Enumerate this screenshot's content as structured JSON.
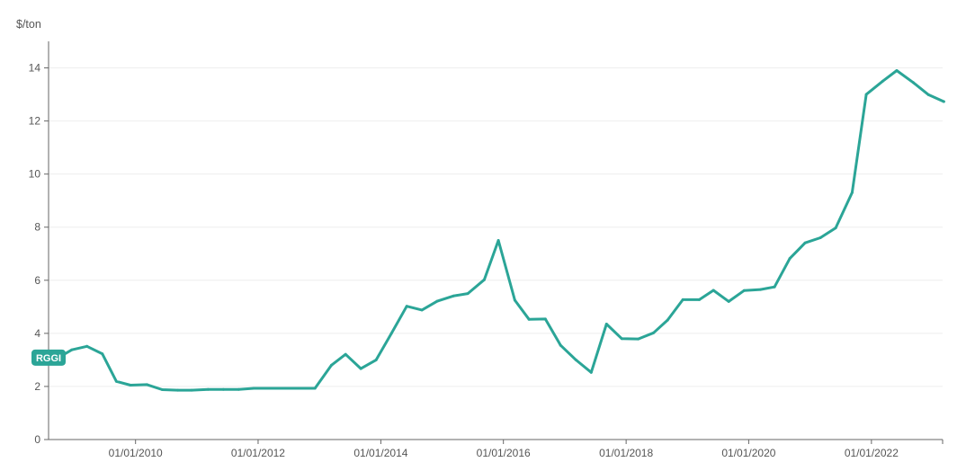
{
  "chart_data": {
    "type": "line",
    "y_unit": "$/ton",
    "ylim": [
      0,
      15
    ],
    "yticks": [
      0,
      2,
      4,
      6,
      8,
      10,
      12,
      14
    ],
    "xlim": [
      "2008-08-01",
      "2023-03-01"
    ],
    "xticks": [
      "2010-01-01",
      "2012-01-01",
      "2014-01-01",
      "2016-01-01",
      "2018-01-01",
      "2020-01-01",
      "2022-01-01"
    ],
    "xtick_labels": [
      "01/01/2010",
      "01/01/2012",
      "01/01/2014",
      "01/01/2016",
      "01/01/2018",
      "01/01/2020",
      "01/01/2022"
    ],
    "grid": true,
    "series": [
      {
        "name": "RGGI",
        "color": "#2ba597",
        "x": [
          "2008-09-25",
          "2008-12-17",
          "2009-03-18",
          "2009-06-17",
          "2009-09-09",
          "2009-12-02",
          "2010-03-10",
          "2010-06-09",
          "2010-09-10",
          "2010-12-01",
          "2011-03-09",
          "2011-06-08",
          "2011-09-07",
          "2011-12-07",
          "2012-03-14",
          "2012-06-06",
          "2012-09-05",
          "2012-12-05",
          "2013-03-13",
          "2013-06-05",
          "2013-09-04",
          "2013-12-04",
          "2014-03-05",
          "2014-06-04",
          "2014-09-03",
          "2014-12-03",
          "2015-03-11",
          "2015-06-03",
          "2015-09-09",
          "2015-12-02",
          "2016-03-09",
          "2016-06-01",
          "2016-09-07",
          "2016-12-07",
          "2017-03-08",
          "2017-06-07",
          "2017-09-06",
          "2017-12-06",
          "2018-03-14",
          "2018-06-13",
          "2018-09-05",
          "2018-12-05",
          "2019-03-13",
          "2019-06-05",
          "2019-09-04",
          "2019-12-04",
          "2020-03-11",
          "2020-06-03",
          "2020-09-02",
          "2020-12-02",
          "2021-03-03",
          "2021-06-02",
          "2021-09-08",
          "2021-12-01",
          "2022-03-09",
          "2022-06-01",
          "2022-09-07",
          "2022-12-07",
          "2023-03-08"
        ],
        "values": [
          3.07,
          3.38,
          3.51,
          3.23,
          2.19,
          2.05,
          2.07,
          1.88,
          1.86,
          1.86,
          1.89,
          1.89,
          1.89,
          1.93,
          1.93,
          1.93,
          1.93,
          1.93,
          2.8,
          3.21,
          2.67,
          3.0,
          4.0,
          5.02,
          4.88,
          5.21,
          5.41,
          5.5,
          6.02,
          7.5,
          5.25,
          4.53,
          4.54,
          3.55,
          3.0,
          2.53,
          4.35,
          3.8,
          3.79,
          4.02,
          4.5,
          5.27,
          5.27,
          5.62,
          5.2,
          5.61,
          5.65,
          5.75,
          6.82,
          7.41,
          7.6,
          7.97,
          9.3,
          13.0,
          13.5,
          13.9,
          13.45,
          12.99,
          12.73
        ]
      }
    ]
  }
}
